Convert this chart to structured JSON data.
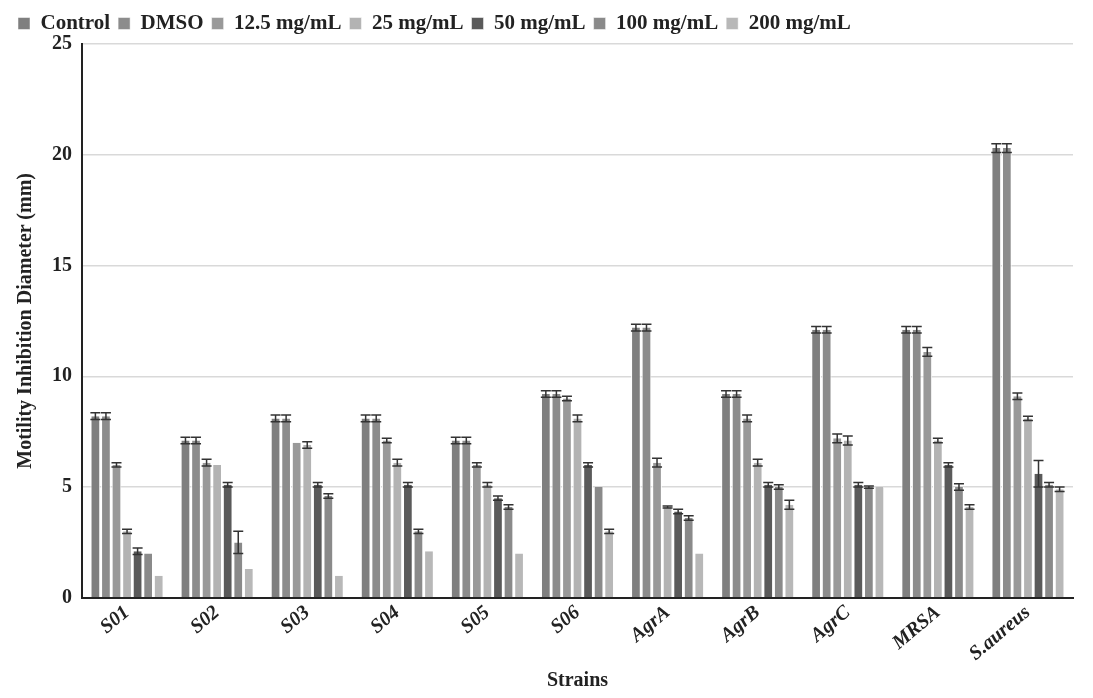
{
  "chart_data": {
    "type": "bar",
    "xlabel": "Strains",
    "ylabel": "Motility Inhibition Diameter (mm)",
    "categories": [
      "S01",
      "S02",
      "S03",
      "S04",
      "S05",
      "S06",
      "AgrA",
      "AgrB",
      "AgrC",
      "MRSA",
      "S.aureus"
    ],
    "series": [
      {
        "name": "Control",
        "color": "#7f7f7f",
        "values": [
          8.2,
          7.1,
          8.1,
          8.1,
          7.1,
          9.2,
          12.2,
          9.2,
          12.1,
          12.1,
          20.3
        ],
        "errors": [
          0.15,
          0.15,
          0.15,
          0.15,
          0.15,
          0.15,
          0.15,
          0.15,
          0.15,
          0.15,
          0.2
        ]
      },
      {
        "name": "DMSO",
        "color": "#8c8c8c",
        "values": [
          8.2,
          7.1,
          8.1,
          8.1,
          7.1,
          9.2,
          12.2,
          9.2,
          12.1,
          12.1,
          20.3
        ],
        "errors": [
          0.15,
          0.15,
          0.15,
          0.15,
          0.15,
          0.15,
          0.15,
          0.15,
          0.15,
          0.15,
          0.2
        ]
      },
      {
        "name": "12.5 mg/mL",
        "color": "#999999",
        "values": [
          6,
          6.1,
          7,
          7.1,
          6,
          9,
          6.1,
          8.1,
          7.2,
          11.1,
          9.1
        ],
        "errors": [
          0.1,
          0.15,
          null,
          0.1,
          0.1,
          0.1,
          0.2,
          0.15,
          0.2,
          0.2,
          0.15
        ]
      },
      {
        "name": "25 mg/mL",
        "color": "#b3b3b3",
        "values": [
          3,
          6,
          6.9,
          6.1,
          5.1,
          8.1,
          4.1,
          6.1,
          7.1,
          7.1,
          8.1
        ],
        "errors": [
          0.1,
          null,
          0.15,
          0.15,
          0.1,
          0.15,
          0.05,
          0.15,
          0.2,
          0.1,
          0.1
        ]
      },
      {
        "name": "50 mg/mL",
        "color": "#5a5a5a",
        "values": [
          2.1,
          5.1,
          5.1,
          5.1,
          4.5,
          6,
          3.9,
          5.1,
          5.1,
          6,
          5.6
        ],
        "errors": [
          0.15,
          0.1,
          0.1,
          0.1,
          0.1,
          0.1,
          0.1,
          0.1,
          0.1,
          0.1,
          0.6
        ]
      },
      {
        "name": "100 mg/mL",
        "color": "#8a8a8a",
        "values": [
          2,
          2.5,
          4.6,
          3,
          4.1,
          5,
          3.6,
          5,
          5,
          5,
          5.1
        ],
        "errors": [
          null,
          0.5,
          0.1,
          0.1,
          0.1,
          null,
          0.1,
          0.1,
          0.05,
          0.15,
          0.1
        ]
      },
      {
        "name": "200 mg/mL",
        "color": "#b8b8b8",
        "values": [
          1,
          1.3,
          1,
          2.1,
          2,
          3,
          2,
          4.2,
          5,
          4.1,
          4.9
        ],
        "errors": [
          null,
          null,
          null,
          null,
          null,
          0.1,
          null,
          0.2,
          null,
          0.1,
          0.1
        ]
      }
    ],
    "ylim": [
      0,
      25
    ],
    "yticks": [
      0,
      5,
      10,
      15,
      20,
      25
    ],
    "grid": "y",
    "legend": "top"
  }
}
